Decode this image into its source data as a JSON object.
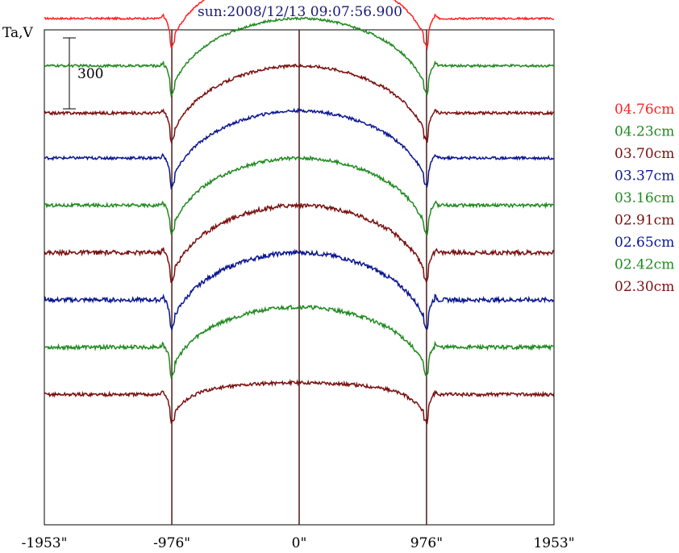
{
  "chart_data": {
    "type": "line",
    "title": "sun:2008/12/13 09:07:56.900",
    "ylabel": "Ta,V",
    "xlabel": "",
    "x_ticks": [
      -1953,
      -976,
      0,
      976,
      1953
    ],
    "x_tick_labels": [
      "-1953\"",
      "-976\"",
      "0\"",
      "976\"",
      "1953\""
    ],
    "xlim": [
      -1953,
      1953
    ],
    "vertical_lines": [
      -976,
      0,
      976
    ],
    "scale_bar": {
      "label": "300",
      "value": 300
    },
    "grid": false,
    "legend_position": "right",
    "series": [
      {
        "name": "04.76cm",
        "color": "#ff2020",
        "baseline": 1040,
        "peak": 240,
        "noise": 4
      },
      {
        "name": "04.23cm",
        "color": "#1f8a1f",
        "baseline": 840,
        "peak": 240,
        "noise": 5
      },
      {
        "name": "03.70cm",
        "color": "#7a0f0f",
        "baseline": 640,
        "peak": 240,
        "noise": 6
      },
      {
        "name": "03.37cm",
        "color": "#0a1590",
        "baseline": 450,
        "peak": 240,
        "noise": 6
      },
      {
        "name": "03.16cm",
        "color": "#1f8a1f",
        "baseline": 250,
        "peak": 240,
        "noise": 7
      },
      {
        "name": "02.91cm",
        "color": "#7a0f0f",
        "baseline": 50,
        "peak": 240,
        "noise": 9
      },
      {
        "name": "02.65cm",
        "color": "#0a1590",
        "baseline": -150,
        "peak": 240,
        "noise": 9
      },
      {
        "name": "02.42cm",
        "color": "#1f8a1f",
        "baseline": -350,
        "peak": 210,
        "noise": 8
      },
      {
        "name": "02.30cm",
        "color": "#7a0f0f",
        "baseline": -550,
        "peak": 90,
        "noise": 7
      }
    ]
  }
}
